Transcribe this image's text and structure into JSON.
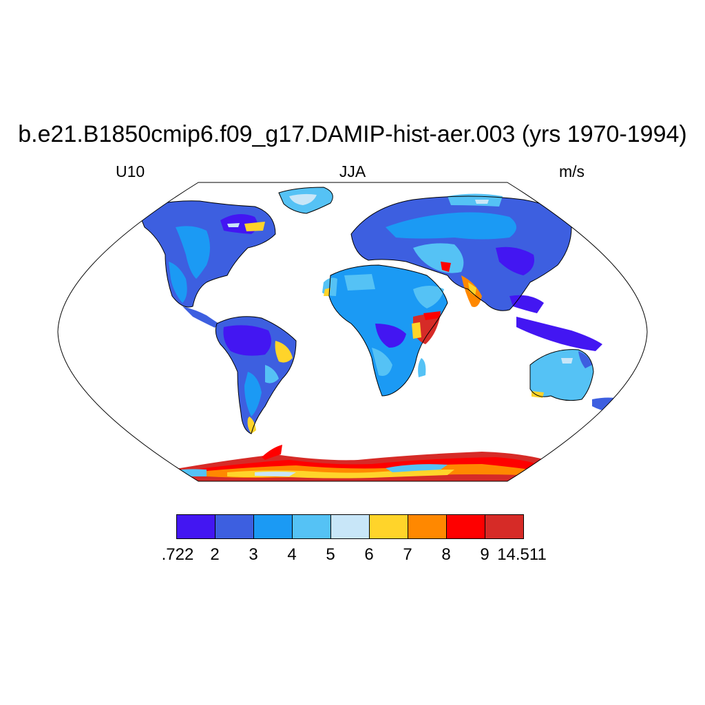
{
  "title": "b.e21.B1850cmip6.f09_g17.DAMIP-hist-aer.003 (yrs 1970-1994)",
  "subtitle_left": "U10",
  "subtitle_center": "JJA",
  "subtitle_right": "m/s",
  "colorbar": {
    "colors": [
      "#4316f2",
      "#3d5fe0",
      "#1b9af4",
      "#55c2f5",
      "#c8e6f8",
      "#ffd42a",
      "#ff8800",
      "#fe0000",
      "#d62b27"
    ],
    "labels": [
      ".722",
      "2",
      "3",
      "4",
      "5",
      "6",
      "7",
      "8",
      "9",
      "14.511"
    ]
  },
  "colors": {
    "ocean": "#ffffff",
    "outline": "#000000"
  }
}
